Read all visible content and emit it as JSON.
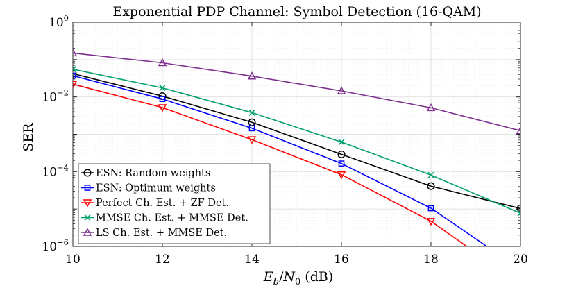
{
  "chart_data": {
    "type": "line",
    "title": "Exponential PDP Channel: Symbol Detection (16-QAM)",
    "xlabel": "E_b/N_0 (dB)",
    "ylabel": "SER",
    "xlim": [
      10,
      20
    ],
    "ylim": [
      1e-06,
      1
    ],
    "yscale": "log",
    "grid": true,
    "legend_position": "bottom-left",
    "xticks": [
      10,
      12,
      14,
      16,
      18,
      20
    ],
    "xtick_labels": [
      "10",
      "12",
      "14",
      "16",
      "18",
      "20"
    ],
    "yticks": [
      1e-06,
      0.0001,
      0.01,
      1
    ],
    "ytick_labels": [
      {
        "base": "10",
        "exp": "−6"
      },
      {
        "base": "10",
        "exp": "−4"
      },
      {
        "base": "10",
        "exp": "−2"
      },
      {
        "base": "10",
        "exp": "0"
      }
    ],
    "series": [
      {
        "name": "ESN: Random weights",
        "color": "#000000",
        "marker": "circle",
        "x": [
          10,
          12,
          14,
          16,
          18,
          20
        ],
        "y": [
          0.042,
          0.0105,
          0.0021,
          0.00029,
          4.1e-05,
          1.03e-05
        ]
      },
      {
        "name": "ESN: Optimum weights",
        "color": "#0000ff",
        "marker": "square",
        "x": [
          10,
          12,
          14,
          16,
          18,
          19.25
        ],
        "y": [
          0.037,
          0.0088,
          0.00145,
          0.000165,
          1.05e-05,
          1e-06
        ]
      },
      {
        "name": "Perfect Ch. Est. + ZF Det.",
        "color": "#ff0000",
        "marker": "triangle-down",
        "x": [
          10,
          12,
          14,
          16,
          18,
          18.8
        ],
        "y": [
          0.022,
          0.0052,
          0.00072,
          8.3e-05,
          4.7e-06,
          1e-06
        ]
      },
      {
        "name": "MMSE Ch. Est. + MMSE Det.",
        "color": "#00a070",
        "marker": "x",
        "x": [
          10,
          12,
          14,
          16,
          18,
          20
        ],
        "y": [
          0.055,
          0.0175,
          0.0038,
          0.00062,
          8.1e-05,
          7.7e-06
        ]
      },
      {
        "name": "LS Ch. Est. + MMSE Det.",
        "color": "#7e2f8e",
        "marker": "triangle-up",
        "x": [
          10,
          12,
          14,
          16,
          18,
          20
        ],
        "y": [
          0.15,
          0.082,
          0.036,
          0.0145,
          0.0051,
          0.00125
        ]
      }
    ]
  }
}
